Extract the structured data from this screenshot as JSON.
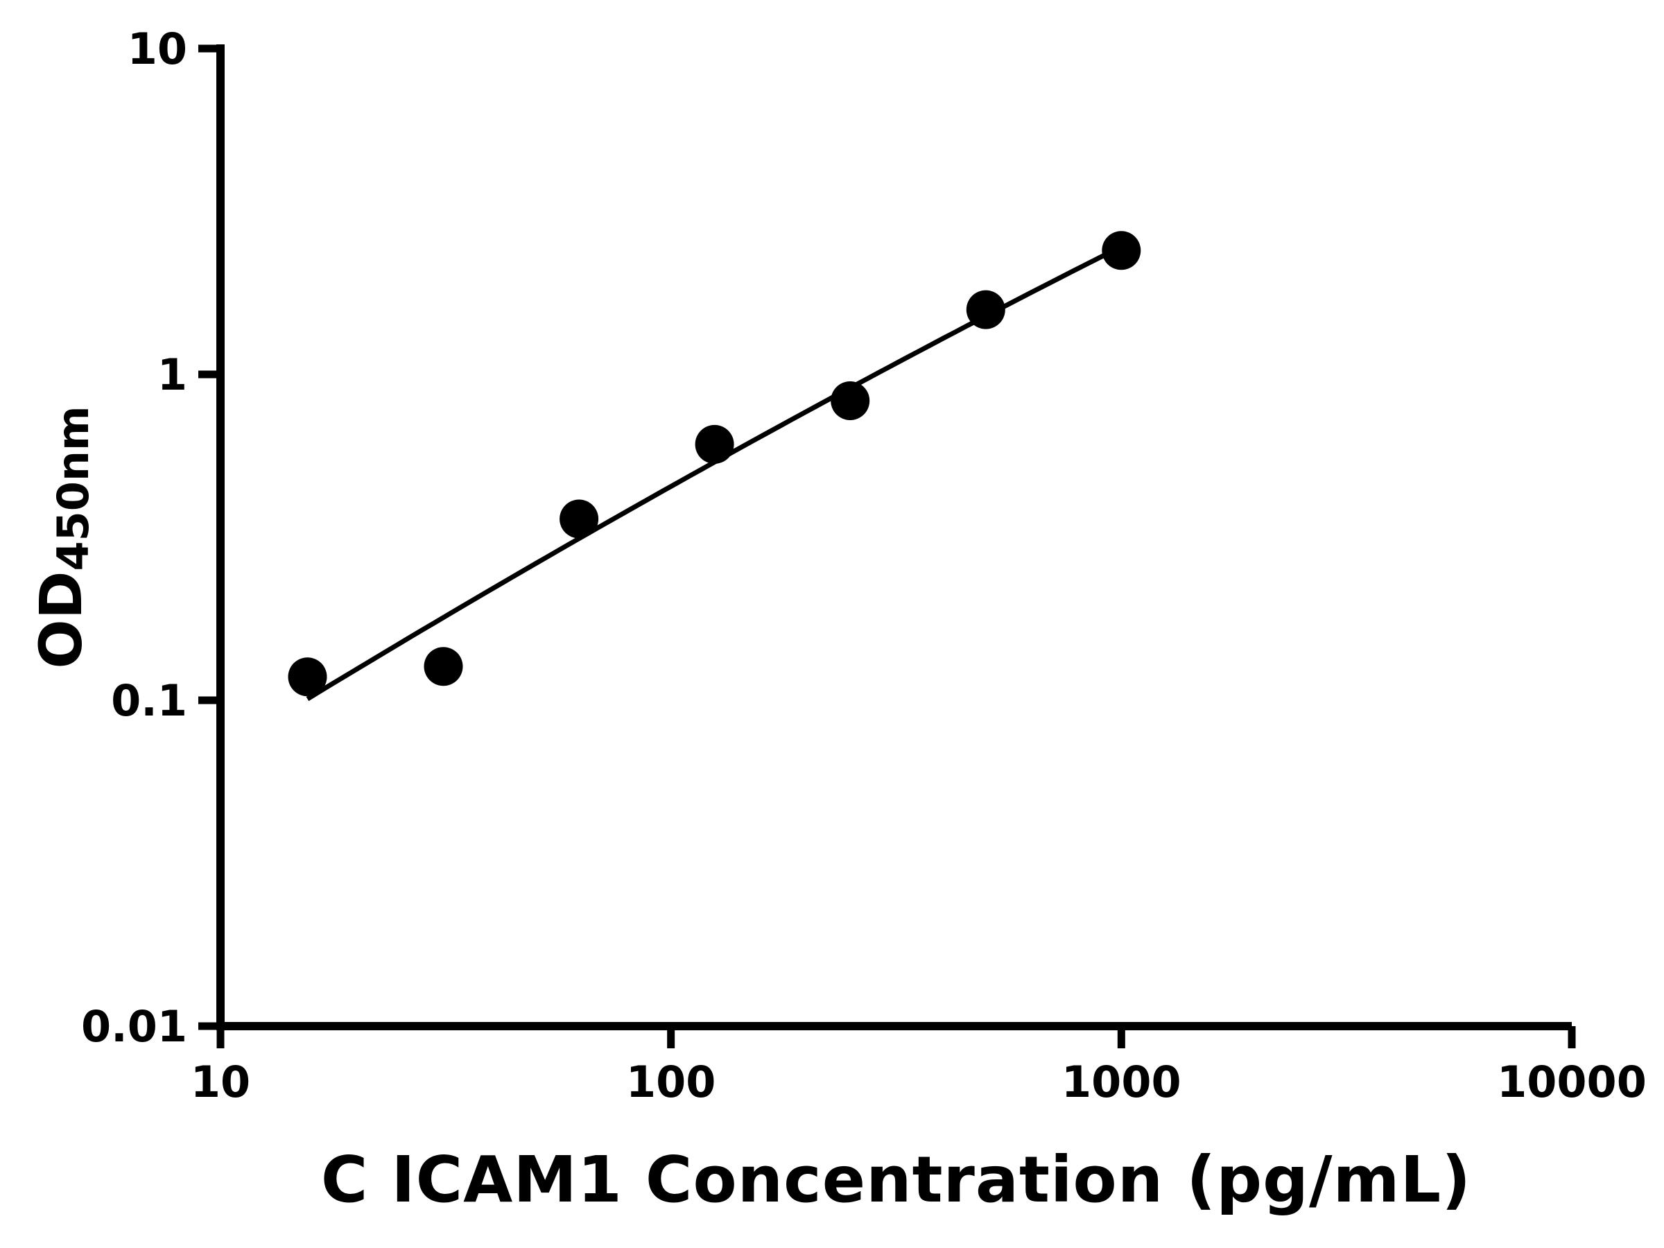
{
  "figure": {
    "background": "#ffffff",
    "ink": "#000000"
  },
  "chart_data": {
    "type": "scatter",
    "title": "",
    "xlabel": "C ICAM1 Concentration (pg/mL)",
    "ylabel_main": "OD",
    "ylabel_sub": "450nm",
    "x_scale": "log",
    "y_scale": "log",
    "xlim": [
      10,
      10000
    ],
    "ylim": [
      0.01,
      10
    ],
    "x_ticks": [
      10,
      100,
      1000,
      10000
    ],
    "x_tick_labels": [
      "10",
      "100",
      "1000",
      "10000"
    ],
    "y_ticks": [
      0.01,
      0.1,
      1,
      10
    ],
    "y_tick_labels": [
      "0.01",
      "0.1",
      "1",
      "10"
    ],
    "grid": false,
    "legend": false,
    "points": [
      {
        "x": 15.6,
        "y": 0.118
      },
      {
        "x": 31.25,
        "y": 0.127
      },
      {
        "x": 62.5,
        "y": 0.36
      },
      {
        "x": 125,
        "y": 0.61
      },
      {
        "x": 250,
        "y": 0.83
      },
      {
        "x": 500,
        "y": 1.58
      },
      {
        "x": 1000,
        "y": 2.4
      }
    ],
    "trendline": {
      "type": "log-log quadratic least-squares fit through points",
      "x_start": 15.6,
      "x_end": 1000
    },
    "marker": {
      "shape": "circle",
      "color": "#000000",
      "radius_px": 28
    },
    "line_color": "#000000"
  }
}
